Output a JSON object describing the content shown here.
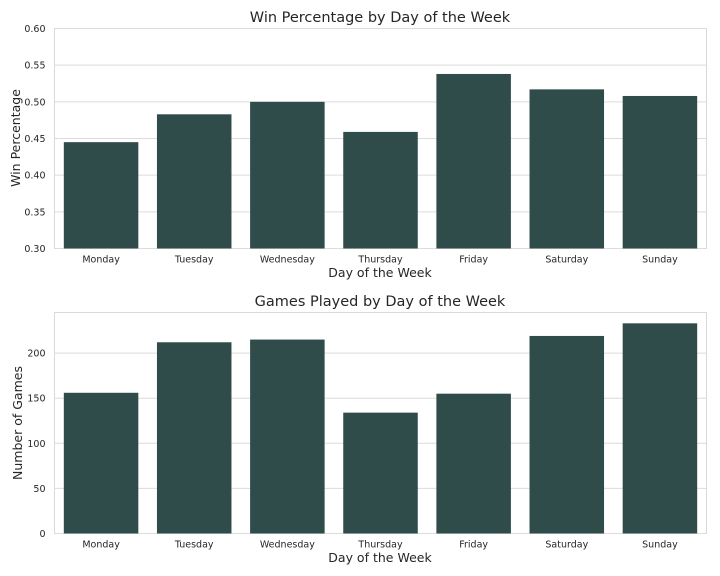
{
  "chart_data": [
    {
      "type": "bar",
      "title": "Win Percentage by Day of the Week",
      "xlabel": "Day of the Week",
      "ylabel": "Win Percentage",
      "categories": [
        "Monday",
        "Tuesday",
        "Wednesday",
        "Thursday",
        "Friday",
        "Saturday",
        "Sunday"
      ],
      "values": [
        0.445,
        0.483,
        0.5,
        0.459,
        0.538,
        0.517,
        0.508
      ],
      "ylim": [
        0.3,
        0.6
      ],
      "yticks": [
        0.3,
        0.35,
        0.4,
        0.45,
        0.5,
        0.55,
        0.6
      ],
      "ytick_labels": [
        "0.30",
        "0.35",
        "0.40",
        "0.45",
        "0.50",
        "0.55",
        "0.60"
      ],
      "grid": true,
      "legend": "none",
      "bar_color": "#2f4b4a"
    },
    {
      "type": "bar",
      "title": "Games Played by Day of the Week",
      "xlabel": "Day of the Week",
      "ylabel": "Number of Games",
      "categories": [
        "Monday",
        "Tuesday",
        "Wednesday",
        "Thursday",
        "Friday",
        "Saturday",
        "Sunday"
      ],
      "values": [
        156,
        212,
        215,
        134,
        155,
        219,
        233
      ],
      "ylim": [
        0,
        245
      ],
      "yticks": [
        0,
        50,
        100,
        150,
        200
      ],
      "ytick_labels": [
        "0",
        "50",
        "100",
        "150",
        "200"
      ],
      "grid": true,
      "legend": "none",
      "bar_color": "#2f4b4a"
    }
  ]
}
